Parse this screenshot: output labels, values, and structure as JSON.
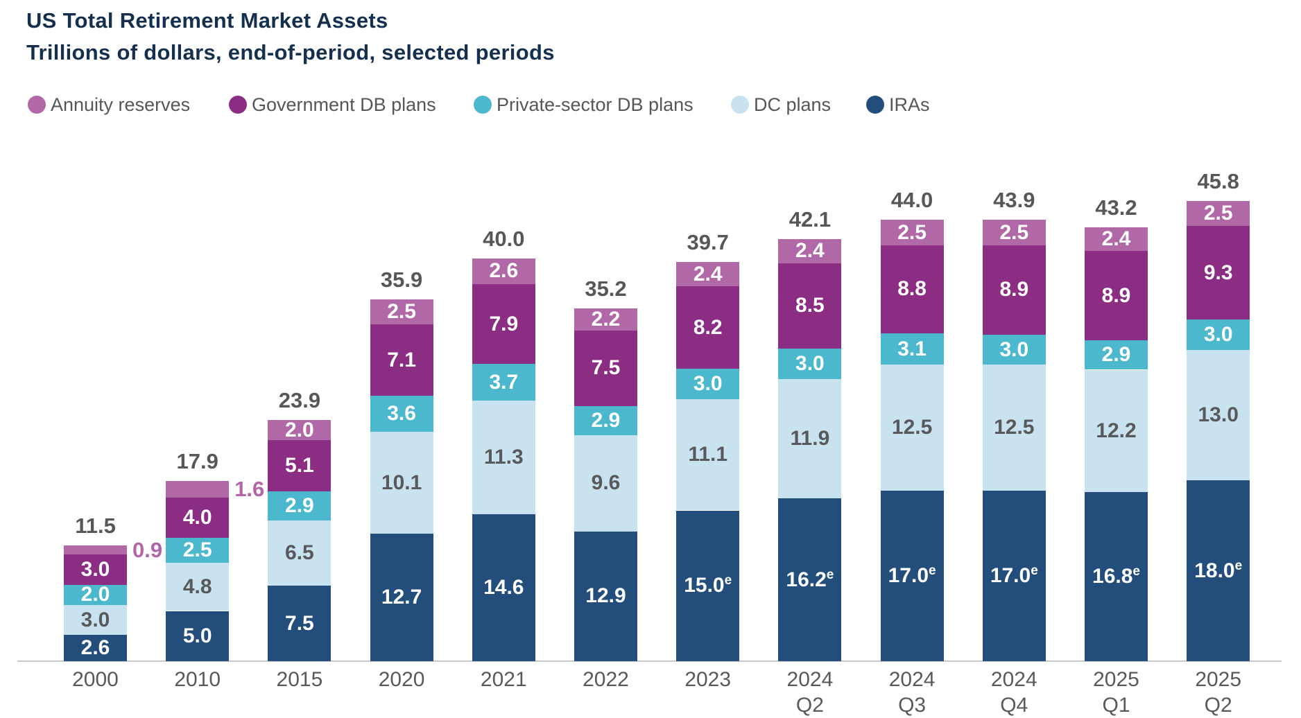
{
  "title": "US Total Retirement Market Assets",
  "subtitle": "Trillions of dollars, end-of-period, selected periods",
  "legend": [
    {
      "label": "Annuity reserves",
      "color": "#b168a6"
    },
    {
      "label": "Government DB plans",
      "color": "#8c2d84"
    },
    {
      "label": "Private-sector DB plans",
      "color": "#4cb8ce"
    },
    {
      "label": "DC plans",
      "color": "#c9e2ef"
    },
    {
      "label": "IRAs",
      "color": "#234e7c"
    }
  ],
  "colors": {
    "annuity_reserves": "#b168a6",
    "government_db_plans": "#8c2d84",
    "private_sector_db_plans": "#4cb8ce",
    "dc_plans": "#c9e2ef",
    "iras": "#234e7c",
    "title_navy": "#152f4e",
    "label_gray": "#58595b",
    "annotation_pink": "#b165a8",
    "axis_gray": "#c9cacb"
  },
  "chart_data": {
    "type": "bar",
    "stacked": true,
    "title": "US Total Retirement Market Assets",
    "units": "Trillions of dollars, end-of-period",
    "legend_position": "top",
    "grid": false,
    "categories": [
      "2000",
      "2010",
      "2015",
      "2020",
      "2021",
      "2022",
      "2023",
      "2024 Q2",
      "2024 Q3",
      "2024 Q4",
      "2025 Q1",
      "2025 Q2"
    ],
    "series": [
      {
        "name": "IRAs",
        "color": "#234e7c",
        "text_color": "#ffffff",
        "values": [
          2.6,
          5.0,
          7.5,
          12.7,
          14.6,
          12.9,
          15.0,
          16.2,
          17.0,
          17.0,
          16.8,
          18.0
        ],
        "labels": [
          "2.6",
          "5.0",
          "7.5",
          "12.7",
          "14.6",
          "12.9",
          "15.0e",
          "16.2e",
          "17.0e",
          "17.0e",
          "16.8e",
          "18.0e"
        ]
      },
      {
        "name": "DC plans",
        "color": "#c9e2ef",
        "text_color": "#58595b",
        "values": [
          3.0,
          4.8,
          6.5,
          10.1,
          11.3,
          9.6,
          11.1,
          11.9,
          12.5,
          12.5,
          12.2,
          13.0
        ],
        "labels": [
          "3.0",
          "4.8",
          "6.5",
          "10.1",
          "11.3",
          "9.6",
          "11.1",
          "11.9",
          "12.5",
          "12.5",
          "12.2",
          "13.0"
        ]
      },
      {
        "name": "Private-sector DB plans",
        "color": "#4cb8ce",
        "text_color": "#ffffff",
        "values": [
          2.0,
          2.5,
          2.9,
          3.6,
          3.7,
          2.9,
          3.0,
          3.0,
          3.1,
          3.0,
          2.9,
          3.0
        ],
        "labels": [
          "2.0",
          "2.5",
          "2.9",
          "3.6",
          "3.7",
          "2.9",
          "3.0",
          "3.0",
          "3.1",
          "3.0",
          "2.9",
          "3.0"
        ]
      },
      {
        "name": "Government DB plans",
        "color": "#8c2d84",
        "text_color": "#ffffff",
        "values": [
          3.0,
          4.0,
          5.1,
          7.1,
          7.9,
          7.5,
          8.2,
          8.5,
          8.8,
          8.9,
          8.9,
          9.3
        ],
        "labels": [
          "3.0",
          "4.0",
          "5.1",
          "7.1",
          "7.9",
          "7.5",
          "8.2",
          "8.5",
          "8.8",
          "8.9",
          "8.9",
          "9.3"
        ]
      },
      {
        "name": "Annuity reserves",
        "color": "#b168a6",
        "text_color": "#ffffff",
        "values": [
          0.9,
          1.6,
          2.0,
          2.5,
          2.6,
          2.2,
          2.4,
          2.4,
          2.5,
          2.5,
          2.4,
          2.5
        ],
        "labels": [
          "0.9",
          "1.6",
          "2.0",
          "2.5",
          "2.6",
          "2.2",
          "2.4",
          "2.4",
          "2.5",
          "2.5",
          "2.4",
          "2.5"
        ],
        "label_outside": [
          true,
          true,
          false,
          false,
          false,
          false,
          false,
          false,
          false,
          false,
          false,
          false
        ]
      }
    ],
    "totals": [
      11.5,
      17.9,
      23.9,
      35.9,
      40.0,
      35.2,
      39.7,
      42.1,
      44.0,
      43.9,
      43.2,
      45.8
    ],
    "totals_labels": [
      "11.5",
      "17.9",
      "23.9",
      "35.9",
      "40.0",
      "35.2",
      "39.7",
      "42.1",
      "44.0",
      "43.9",
      "43.2",
      "45.8"
    ],
    "estimated_note": "e"
  }
}
